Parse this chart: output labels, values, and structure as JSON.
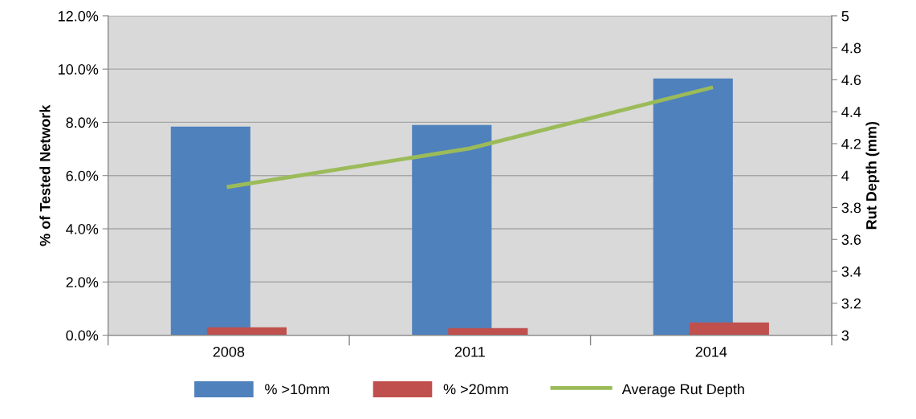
{
  "chart_data": {
    "type": "bar",
    "categories": [
      "2008",
      "2011",
      "2014"
    ],
    "series": [
      {
        "name": "% >10mm",
        "color": "#4f81bd",
        "values": [
          7.84,
          7.9,
          9.65
        ]
      },
      {
        "name": "% >20mm",
        "color": "#c0504d",
        "values": [
          0.3,
          0.27,
          0.48
        ]
      },
      {
        "name": "Average Rut Depth",
        "type": "line",
        "axis": "y2",
        "color": "#9bbb59",
        "values": [
          3.93,
          4.17,
          4.55
        ]
      }
    ],
    "ylabel": "% of Tested Network",
    "y2label": "Rut Depth (mm)",
    "ylim": [
      0,
      12
    ],
    "yticks": [
      {
        "value": 0,
        "label": "0.0%"
      },
      {
        "value": 2,
        "label": "2.0%"
      },
      {
        "value": 4,
        "label": "4.0%"
      },
      {
        "value": 6,
        "label": "6.0%"
      },
      {
        "value": 8,
        "label": "8.0%"
      },
      {
        "value": 10,
        "label": "10.0%"
      },
      {
        "value": 12,
        "label": "12.0%"
      }
    ],
    "y2lim": [
      3,
      5
    ],
    "y2ticks": [
      3,
      3.2,
      3.4,
      3.6,
      3.8,
      4,
      4.2,
      4.4,
      4.6,
      4.8,
      5
    ],
    "grid": "y",
    "legend": "bottom",
    "marker": "none",
    "line_style": "solid"
  }
}
